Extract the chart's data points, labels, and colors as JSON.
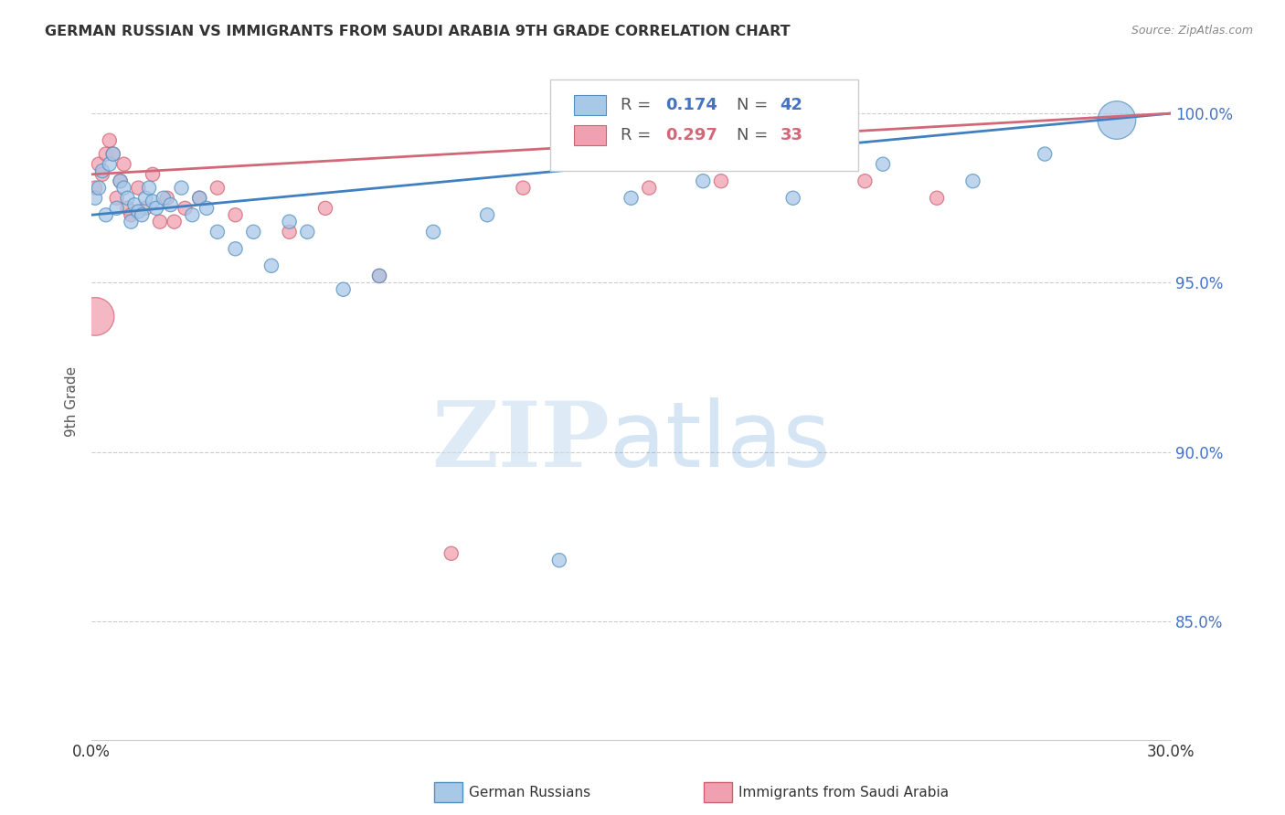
{
  "title": "GERMAN RUSSIAN VS IMMIGRANTS FROM SAUDI ARABIA 9TH GRADE CORRELATION CHART",
  "source": "Source: ZipAtlas.com",
  "ylabel": "9th Grade",
  "ytick_values": [
    0.85,
    0.9,
    0.95,
    1.0
  ],
  "xlim": [
    0.0,
    0.3
  ],
  "ylim": [
    0.815,
    1.015
  ],
  "blue_r": "0.174",
  "blue_n": "42",
  "pink_r": "0.297",
  "pink_n": "33",
  "blue_fill": "#a8c8e8",
  "blue_edge": "#5090c0",
  "pink_fill": "#f0a0b0",
  "pink_edge": "#d06070",
  "blue_line": "#4080c0",
  "pink_line": "#d06878",
  "label_blue": "German Russians",
  "label_pink": "Immigrants from Saudi Arabia",
  "blue_x": [
    0.001,
    0.002,
    0.003,
    0.004,
    0.005,
    0.006,
    0.007,
    0.008,
    0.009,
    0.01,
    0.011,
    0.012,
    0.013,
    0.014,
    0.015,
    0.016,
    0.017,
    0.018,
    0.02,
    0.022,
    0.025,
    0.028,
    0.03,
    0.032,
    0.035,
    0.04,
    0.045,
    0.05,
    0.055,
    0.06,
    0.07,
    0.08,
    0.095,
    0.11,
    0.13,
    0.15,
    0.17,
    0.195,
    0.22,
    0.245,
    0.265,
    0.285
  ],
  "blue_y": [
    0.975,
    0.978,
    0.983,
    0.97,
    0.985,
    0.988,
    0.972,
    0.98,
    0.978,
    0.975,
    0.968,
    0.973,
    0.971,
    0.97,
    0.975,
    0.978,
    0.974,
    0.972,
    0.975,
    0.973,
    0.978,
    0.97,
    0.975,
    0.972,
    0.965,
    0.96,
    0.965,
    0.955,
    0.968,
    0.965,
    0.948,
    0.952,
    0.965,
    0.97,
    0.868,
    0.975,
    0.98,
    0.975,
    0.985,
    0.98,
    0.988,
    0.998
  ],
  "blue_s": [
    120,
    120,
    120,
    120,
    120,
    120,
    120,
    120,
    120,
    120,
    120,
    120,
    120,
    120,
    120,
    120,
    120,
    120,
    120,
    120,
    120,
    120,
    120,
    120,
    120,
    120,
    120,
    120,
    120,
    120,
    120,
    120,
    120,
    120,
    120,
    120,
    120,
    120,
    120,
    120,
    120,
    900
  ],
  "pink_x": [
    0.001,
    0.002,
    0.003,
    0.004,
    0.005,
    0.006,
    0.007,
    0.008,
    0.009,
    0.01,
    0.011,
    0.013,
    0.015,
    0.017,
    0.019,
    0.021,
    0.023,
    0.026,
    0.03,
    0.035,
    0.04,
    0.055,
    0.065,
    0.08,
    0.1,
    0.12,
    0.15,
    0.175,
    0.195,
    0.215,
    0.001,
    0.155,
    0.235
  ],
  "pink_y": [
    0.978,
    0.985,
    0.982,
    0.988,
    0.992,
    0.988,
    0.975,
    0.98,
    0.985,
    0.972,
    0.97,
    0.978,
    0.972,
    0.982,
    0.968,
    0.975,
    0.968,
    0.972,
    0.975,
    0.978,
    0.97,
    0.965,
    0.972,
    0.952,
    0.87,
    0.978,
    0.985,
    0.98,
    0.985,
    0.98,
    0.94,
    0.978,
    0.975
  ],
  "pink_s": [
    120,
    120,
    120,
    120,
    120,
    120,
    120,
    120,
    120,
    120,
    120,
    120,
    120,
    120,
    120,
    120,
    120,
    120,
    120,
    120,
    120,
    120,
    120,
    120,
    120,
    120,
    120,
    120,
    120,
    120,
    900,
    120,
    120
  ],
  "background_color": "#ffffff",
  "grid_color": "#cccccc"
}
